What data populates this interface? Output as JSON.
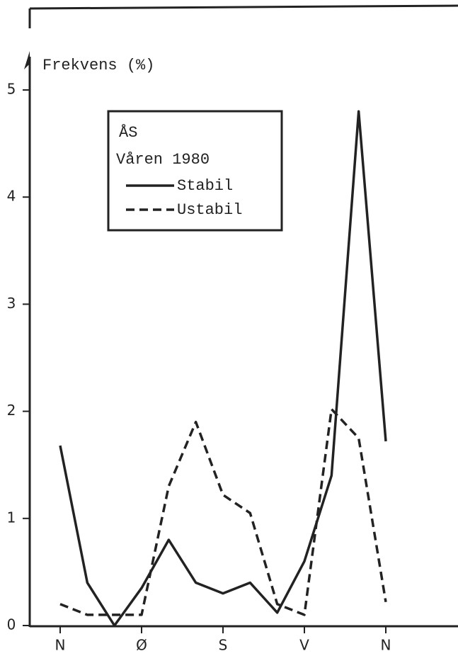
{
  "chart_data": {
    "type": "line",
    "y_label": "Frekvens (%)",
    "legend_title": [
      "ÅS",
      "Våren 1980"
    ],
    "categories": [
      "N",
      null,
      null,
      "Ø",
      null,
      null,
      "S",
      null,
      null,
      "V",
      null,
      null,
      "N"
    ],
    "series": [
      {
        "name": "Stabil",
        "color": "#222222",
        "dash": "solid",
        "values": [
          1.68,
          0.4,
          0.0,
          0.35,
          0.8,
          0.4,
          0.3,
          0.4,
          0.12,
          0.6,
          1.4,
          4.8,
          1.72
        ]
      },
      {
        "name": "Ustabil",
        "color": "#222222",
        "dash": "dashed",
        "values": [
          0.2,
          0.1,
          0.1,
          0.1,
          1.3,
          1.9,
          1.22,
          1.05,
          0.2,
          0.1,
          2.02,
          1.75,
          0.22
        ]
      }
    ],
    "ylim": [
      0,
      5
    ],
    "yticks": [
      0,
      1,
      2,
      3,
      4,
      5
    ]
  }
}
